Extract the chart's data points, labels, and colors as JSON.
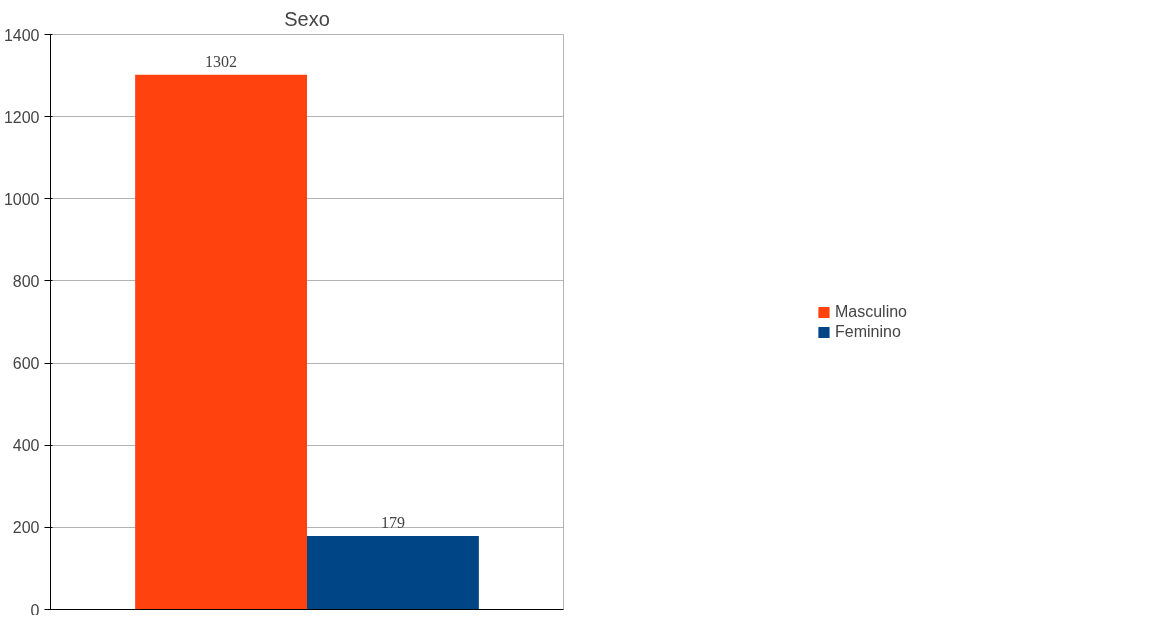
{
  "chart_data": {
    "type": "bar",
    "title": "Sexo",
    "categories": [
      null
    ],
    "series": [
      {
        "name": "Masculino",
        "color": "#ff420e",
        "values": [
          1302
        ]
      },
      {
        "name": "Feminino",
        "color": "#004586",
        "values": [
          179
        ]
      }
    ],
    "ylim": [
      0,
      1400
    ],
    "yticks": [
      0,
      200,
      400,
      600,
      800,
      1000,
      1200,
      1400
    ],
    "grid": "y",
    "legend": "right",
    "data_labels": true
  }
}
